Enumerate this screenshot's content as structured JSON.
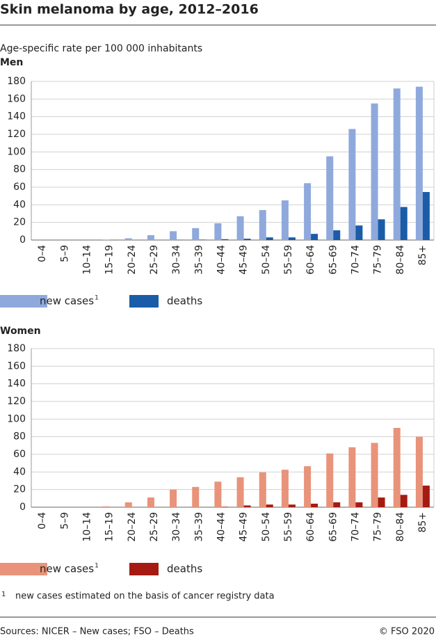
{
  "header": {
    "title": "Skin melanoma by age, 2012–2016",
    "subtitle": "Age-specific rate per 100 000 inhabitants"
  },
  "chart_data": [
    {
      "type": "bar",
      "title": "Men",
      "categories": [
        "0–4",
        "5–9",
        "10–14",
        "15–19",
        "20–24",
        "25–29",
        "30–34",
        "35–39",
        "40–44",
        "45–49",
        "50–54",
        "55–59",
        "60–64",
        "65–69",
        "70–74",
        "75–79",
        "80–84",
        "85+"
      ],
      "series": [
        {
          "name": "new cases",
          "note_ref": "1",
          "color": "#8fa9dc",
          "values": [
            0,
            0,
            0,
            0.5,
            2,
            5.5,
            10,
            13.5,
            19,
            27,
            34,
            45,
            64.5,
            95,
            126,
            155,
            172,
            174
          ]
        },
        {
          "name": "deaths",
          "color": "#1a5ca8",
          "values": [
            0,
            0,
            0,
            0,
            0,
            0,
            0.3,
            0.5,
            1,
            1.5,
            3,
            3,
            7,
            11,
            16.5,
            23.5,
            37.5,
            54.5
          ]
        }
      ],
      "ylim": [
        0,
        180
      ],
      "yticks": [
        0,
        20,
        40,
        60,
        80,
        100,
        120,
        140,
        160,
        180
      ],
      "grid": true
    },
    {
      "type": "bar",
      "title": "Women",
      "categories": [
        "0–4",
        "5–9",
        "10–14",
        "15–19",
        "20–24",
        "25–29",
        "30–34",
        "35–39",
        "40–44",
        "45–49",
        "50–54",
        "55–59",
        "60–64",
        "65–69",
        "70–74",
        "75–79",
        "80–84",
        "85+"
      ],
      "series": [
        {
          "name": "new cases",
          "note_ref": "1",
          "color": "#e8937a",
          "values": [
            0,
            0,
            0,
            1,
            5.5,
            11,
            20,
            23,
            29,
            34,
            39.5,
            42.5,
            46.5,
            61,
            68,
            73,
            90,
            80
          ]
        },
        {
          "name": "deaths",
          "color": "#a51b12",
          "values": [
            0,
            0,
            0,
            0,
            0,
            0,
            0,
            0,
            0.5,
            2,
            3,
            3,
            4,
            5.5,
            5.5,
            11,
            14,
            24.5
          ]
        }
      ],
      "ylim": [
        0,
        180
      ],
      "yticks": [
        0,
        20,
        40,
        60,
        80,
        100,
        120,
        140,
        160,
        180
      ],
      "grid": true
    }
  ],
  "footnote": {
    "marker": "1",
    "text": "new cases estimated on the basis of cancer registry data"
  },
  "source": "Sources: NICER – New cases; FSO – Deaths",
  "copyright": "© FSO 2020"
}
